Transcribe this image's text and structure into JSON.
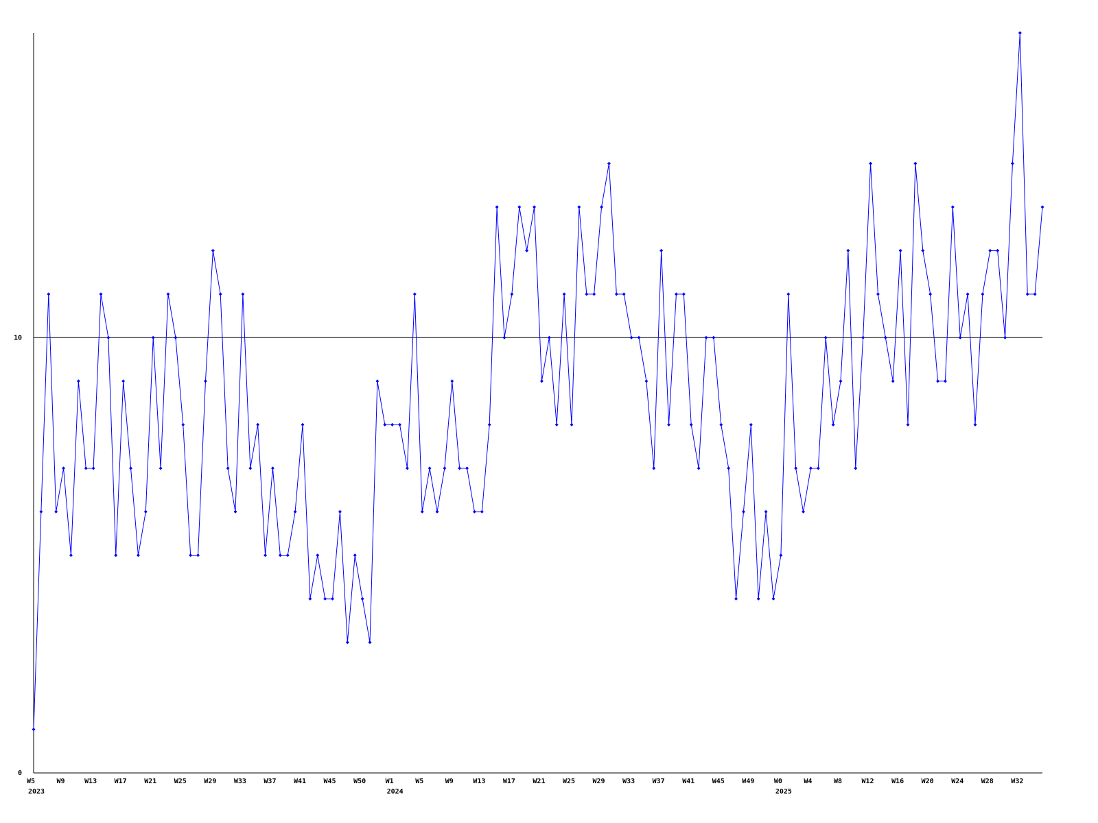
{
  "chart_data": {
    "type": "line",
    "color": "#0000ff",
    "categories": [
      "W5",
      null,
      null,
      null,
      "W9",
      null,
      null,
      null,
      "W13",
      null,
      null,
      null,
      "W17",
      null,
      null,
      null,
      "W21",
      null,
      null,
      null,
      "W25",
      null,
      null,
      null,
      "W29",
      null,
      null,
      null,
      "W33",
      null,
      null,
      null,
      "W37",
      null,
      null,
      null,
      "W41",
      null,
      null,
      null,
      "W45",
      null,
      null,
      null,
      "W50",
      null,
      null,
      null,
      "W1",
      null,
      null,
      null,
      "W5",
      null,
      null,
      null,
      "W9",
      null,
      null,
      null,
      "W13",
      null,
      null,
      null,
      "W17",
      null,
      null,
      null,
      "W21",
      null,
      null,
      null,
      "W25",
      null,
      null,
      null,
      "W29",
      null,
      null,
      null,
      "W33",
      null,
      null,
      null,
      "W37",
      null,
      null,
      null,
      "W41",
      null,
      null,
      null,
      "W45",
      null,
      null,
      null,
      "W49",
      null,
      null,
      null,
      "W0",
      null,
      null,
      null,
      "W4",
      null,
      null,
      null,
      "W8",
      null,
      null,
      null,
      "W12",
      null,
      null,
      null,
      "W16",
      null,
      null,
      null,
      "W20",
      null,
      null,
      null,
      "W24",
      null,
      null,
      null,
      "W28",
      null,
      null,
      null,
      "W32",
      null,
      null,
      null
    ],
    "years": [
      "2023",
      null,
      null,
      null,
      null,
      null,
      null,
      null,
      null,
      null,
      null,
      null,
      null,
      null,
      null,
      null,
      null,
      null,
      null,
      null,
      null,
      null,
      null,
      null,
      null,
      null,
      null,
      null,
      null,
      null,
      null,
      null,
      null,
      null,
      null,
      null,
      null,
      null,
      null,
      null,
      null,
      null,
      null,
      null,
      null,
      null,
      null,
      null,
      "2024",
      null,
      null,
      null,
      null,
      null,
      null,
      null,
      null,
      null,
      null,
      null,
      null,
      null,
      null,
      null,
      null,
      null,
      null,
      null,
      null,
      null,
      null,
      null,
      null,
      null,
      null,
      null,
      null,
      null,
      null,
      null,
      null,
      null,
      null,
      null,
      null,
      null,
      null,
      null,
      null,
      null,
      null,
      null,
      null,
      null,
      null,
      null,
      null,
      null,
      null,
      null,
      "2025",
      null,
      null,
      null,
      null,
      null,
      null,
      null,
      null,
      null,
      null,
      null,
      null,
      null,
      null,
      null,
      null,
      null,
      null,
      null,
      null,
      null,
      null,
      null,
      null,
      null,
      null,
      null,
      null,
      null,
      null,
      null,
      null,
      null,
      null,
      null
    ],
    "values": [
      1,
      6,
      11,
      6,
      7,
      5,
      9,
      7,
      7,
      11,
      10,
      5,
      9,
      7,
      5,
      6,
      10,
      7,
      11,
      10,
      8,
      5,
      5,
      9,
      12,
      11,
      7,
      6,
      11,
      7,
      8,
      5,
      7,
      5,
      5,
      6,
      8,
      4,
      5,
      4,
      4,
      6,
      3,
      5,
      4,
      3,
      9,
      8,
      8,
      8,
      7,
      11,
      6,
      7,
      6,
      7,
      9,
      7,
      7,
      6,
      6,
      8,
      13,
      10,
      11,
      13,
      12,
      13,
      9,
      10,
      8,
      11,
      8,
      13,
      11,
      11,
      13,
      14,
      11,
      11,
      10,
      10,
      9,
      7,
      12,
      8,
      11,
      11,
      8,
      7,
      10,
      10,
      8,
      7,
      4,
      6,
      8,
      4,
      6,
      4,
      5,
      11,
      7,
      6,
      7,
      7,
      10,
      8,
      9,
      12,
      7,
      10,
      14,
      11,
      10,
      9,
      12,
      8,
      14,
      12,
      11,
      9,
      9,
      13,
      10,
      11,
      8,
      11,
      12,
      12,
      10,
      14,
      17,
      11,
      11,
      13
    ],
    "ylim": [
      0,
      17
    ],
    "yticks": [
      0,
      10
    ],
    "grid": true
  }
}
